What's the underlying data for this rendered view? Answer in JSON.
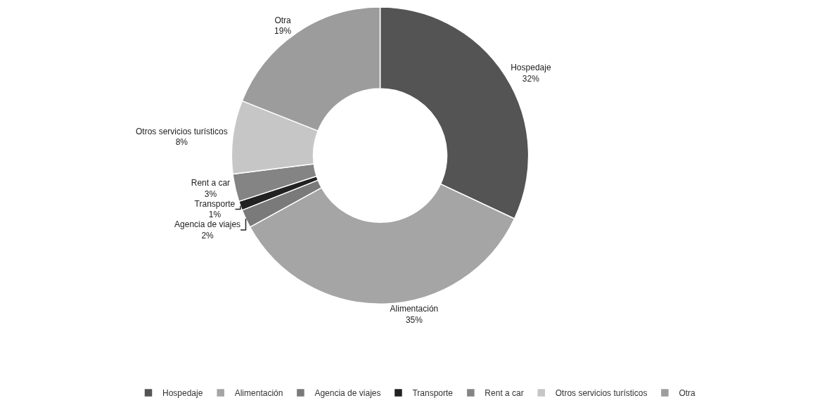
{
  "chart_data": {
    "type": "donut",
    "categories": [
      "Hospedaje",
      "Alimentación",
      "Agencia de viajes",
      "Transporte",
      "Rent a car",
      "Otros servicios turísticos",
      "Otra"
    ],
    "values": [
      32,
      35,
      2,
      1,
      3,
      8,
      19
    ],
    "value_labels": [
      "32%",
      "35%",
      "2%",
      "1%",
      "3%",
      "8%",
      "19%"
    ],
    "colors": [
      "#545454",
      "#a5a5a5",
      "#7a7a7a",
      "#222222",
      "#848484",
      "#c6c6c6",
      "#9c9c9c"
    ],
    "legend": "bottom"
  }
}
